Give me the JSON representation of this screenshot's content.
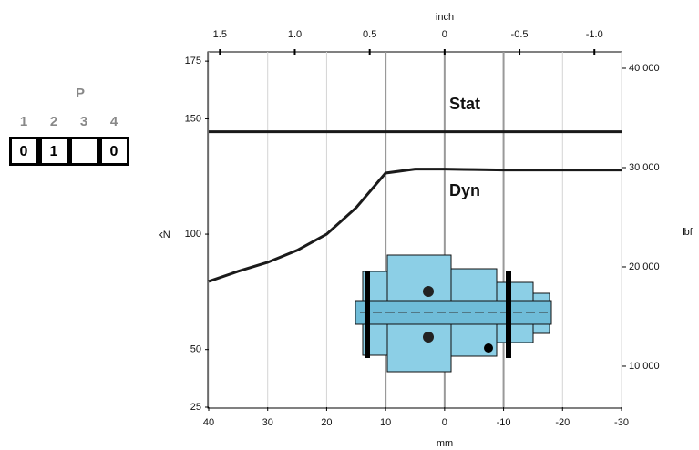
{
  "selector": {
    "title": "P",
    "columns": [
      "1",
      "2",
      "3",
      "4"
    ],
    "cells": [
      "0",
      "1",
      null,
      "0"
    ]
  },
  "chart_data": {
    "type": "line",
    "xlabel": "mm",
    "ylabel": "kN",
    "x2label": "inch",
    "y2label": "lbf",
    "x": [
      40,
      35,
      30,
      25,
      20,
      15,
      10,
      5,
      0,
      -5,
      -10,
      -15,
      -20,
      -25,
      -30
    ],
    "series": [
      {
        "name": "Stat",
        "color": "#1a1a1a",
        "values": [
          144.4,
          144.4,
          144.4,
          144.4,
          144.4,
          144.4,
          144.4,
          144.4,
          144.4,
          144.4,
          144.4,
          144.4,
          144.4,
          144.4,
          144.4
        ]
      },
      {
        "name": "Dyn",
        "color": "#1a1a1a",
        "values": [
          79.5,
          83.9,
          87.8,
          93,
          100,
          111.5,
          126.5,
          128.2,
          128.2,
          128,
          127.8,
          127.8,
          127.8,
          127.8,
          127.8
        ]
      }
    ],
    "xlim": [
      40,
      -30
    ],
    "xticks": [
      40,
      30,
      20,
      10,
      0,
      -10,
      -20,
      -30
    ],
    "ylim": [
      25,
      179
    ],
    "yticks": [
      25,
      50,
      100,
      150,
      175
    ],
    "x2lim": [
      1.5748,
      -1.1811
    ],
    "x2ticks": [
      1.5,
      {
        "value": 1,
        "label": "1.0"
      },
      0.5,
      0,
      -0.5,
      {
        "value": -1,
        "label": "-1.0"
      }
    ],
    "y2lim": [
      5870,
      41650
    ],
    "y2ticks": [
      {
        "value": 10000,
        "label": "10 000"
      },
      {
        "value": 20000,
        "label": "20 000"
      },
      {
        "value": 30000,
        "label": "30 000"
      },
      {
        "value": 40000,
        "label": "40 000"
      }
    ],
    "reference_x": [
      10,
      0,
      -10
    ],
    "grid": true
  }
}
